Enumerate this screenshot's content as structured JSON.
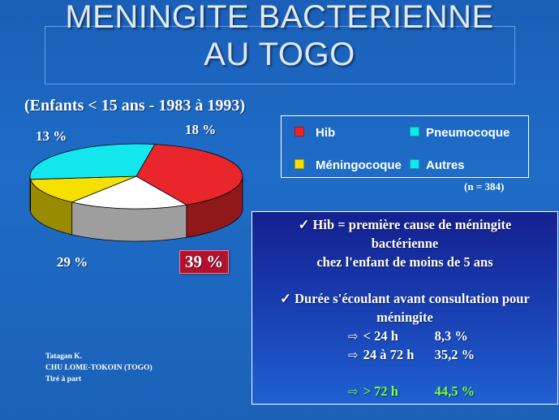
{
  "title": {
    "line1": "MENINGITE BACTERIENNE",
    "line2": "AU TOGO"
  },
  "subtitle": "(Enfants < 15 ans - 1983 à 1993)",
  "chart_data": {
    "type": "pie",
    "title": "",
    "slices": [
      {
        "name": "Hib",
        "value": 39,
        "label": "39 %",
        "color": "#e8262b"
      },
      {
        "name": "Autres",
        "value": 18,
        "label": "18 %",
        "color": "#ffffff"
      },
      {
        "name": "Méningocoque",
        "value": 13,
        "label": "13 %",
        "color": "#f5e000"
      },
      {
        "name": "Pneumocoque",
        "value": 29,
        "label": "29 %",
        "color": "#14e6ee"
      }
    ],
    "legend": [
      {
        "label": "Hib",
        "color": "#e8262b"
      },
      {
        "label": "Pneumocoque",
        "color": "#14e6ee"
      },
      {
        "label": "Méningocoque",
        "color": "#f5e000"
      },
      {
        "label": "Autres",
        "color": "#14e6ee"
      }
    ],
    "legend_position": "right",
    "n_label": "(n = 384)"
  },
  "info": {
    "point1_line1": "✓ Hib = première cause de méningite",
    "point1_line2": "bactérienne",
    "point1_line3": "chez l'enfant de moins de 5 ans",
    "point2_line1": "✓ Durée s'écoulant avant consultation pour",
    "point2_line2": "méningite",
    "rows": [
      {
        "arrow": "⇨",
        "label": "< 24 h",
        "value": "8,3 %"
      },
      {
        "arrow": "⇨",
        "label": "24 à 72 h",
        "value": "35,2 %"
      },
      {
        "arrow": "⇨",
        "label": "> 72 h",
        "value": "44,5 %"
      }
    ]
  },
  "credits": {
    "line1": "Tatagan K.",
    "line2": "CHU LOME-TOKOIN  (TOGO)",
    "line3": "Tiré à part"
  }
}
